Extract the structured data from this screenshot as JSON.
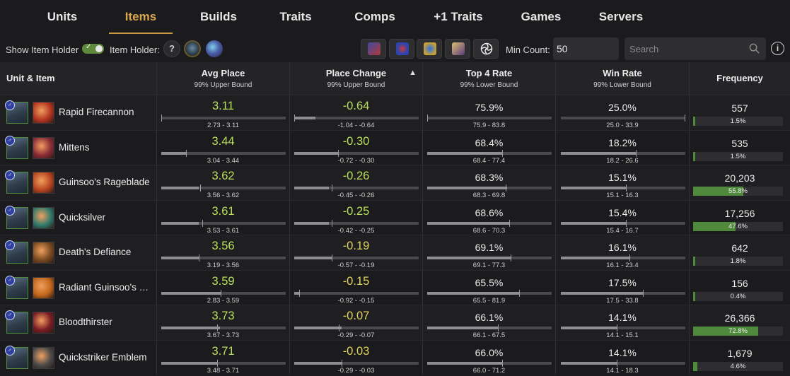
{
  "nav": {
    "tabs": [
      {
        "label": "Units"
      },
      {
        "label": "Items",
        "active": true
      },
      {
        "label": "Builds"
      },
      {
        "label": "Traits"
      },
      {
        "label": "Comps"
      },
      {
        "label": "+1 Traits"
      },
      {
        "label": "Games"
      },
      {
        "label": "Servers"
      }
    ]
  },
  "controls": {
    "show_holder_label": "Show Item Holder",
    "show_holder_on": true,
    "item_holder_label": "Item Holder:",
    "unknown_holder": "?",
    "min_count_label": "Min Count:",
    "min_count_value": "50",
    "search_placeholder": "Search",
    "info": "i"
  },
  "table": {
    "headers": {
      "unit_item": "Unit & Item",
      "avg_place": {
        "title": "Avg Place",
        "sub": "99% Upper Bound"
      },
      "place_change": {
        "title": "Place Change",
        "sub": "99% Upper Bound",
        "sort": "▲"
      },
      "top4": {
        "title": "Top 4 Rate",
        "sub": "99% Lower Bound"
      },
      "win": {
        "title": "Win Rate",
        "sub": "99% Lower Bound"
      },
      "frequency": "Frequency"
    },
    "rows": [
      {
        "item": "Rapid Firecannon",
        "item_icon": "rapid-firecannon-icon",
        "item_color": "#b3331f",
        "avg": "3.11",
        "avg_range": "2.73 - 3.11",
        "avg_fill": 0.0,
        "avg_tick": 0.0,
        "chg": "-0.64",
        "chg_color": "green",
        "chg_range": "-1.04 - -0.64",
        "chg_fill": 0.17,
        "chg_tick": 0.0,
        "top4": "75.9%",
        "top4_range": "75.9 - 83.8",
        "top4_fill": 0.0,
        "top4_tick": 0.0,
        "win": "25.0%",
        "win_range": "25.0 - 33.9",
        "win_fill": 0.0,
        "win_tick": 1.0,
        "freq": "557",
        "freq_pct": "1.5%",
        "freq_fill": 0.015
      },
      {
        "item": "Mittens",
        "item_icon": "mittens-icon",
        "item_color": "#8a2b36",
        "avg": "3.44",
        "avg_range": "3.04 - 3.44",
        "avg_fill": 0.2,
        "avg_tick": 0.2,
        "chg": "-0.30",
        "chg_color": "green",
        "chg_range": "-0.72 - -0.30",
        "chg_fill": 0.35,
        "chg_tick": 0.35,
        "top4": "68.4%",
        "top4_range": "68.4 - 77.4",
        "top4_fill": 0.6,
        "top4_tick": 0.6,
        "win": "18.2%",
        "win_range": "18.2 - 26.6",
        "win_fill": 0.6,
        "win_tick": 0.6,
        "freq": "535",
        "freq_pct": "1.5%",
        "freq_fill": 0.015
      },
      {
        "item": "Guinsoo's Rageblade",
        "item_icon": "guinsoos-rageblade-icon",
        "item_color": "#b84420",
        "avg": "3.62",
        "avg_range": "3.56 - 3.62",
        "avg_fill": 0.3,
        "avg_tick": 0.31,
        "chg": "-0.26",
        "chg_color": "green",
        "chg_range": "-0.45 - -0.26",
        "chg_fill": 0.28,
        "chg_tick": 0.3,
        "top4": "68.3%",
        "top4_range": "68.3 - 69.8",
        "top4_fill": 0.64,
        "top4_tick": 0.63,
        "win": "15.1%",
        "win_range": "15.1 - 16.3",
        "win_fill": 0.52,
        "win_tick": 0.52,
        "freq": "20,203",
        "freq_pct": "55.8%",
        "freq_fill": 0.558
      },
      {
        "item": "Quicksilver",
        "item_icon": "quicksilver-icon",
        "item_color": "#2f7a6a",
        "avg": "3.61",
        "avg_range": "3.53 - 3.61",
        "avg_fill": 0.3,
        "avg_tick": 0.33,
        "chg": "-0.25",
        "chg_color": "green",
        "chg_range": "-0.42 - -0.25",
        "chg_fill": 0.28,
        "chg_tick": 0.3,
        "top4": "68.6%",
        "top4_range": "68.6 - 70.3",
        "top4_fill": 0.66,
        "top4_tick": 0.66,
        "win": "15.4%",
        "win_range": "15.4 - 16.7",
        "win_fill": 0.52,
        "win_tick": 0.52,
        "freq": "17,256",
        "freq_pct": "47.6%",
        "freq_fill": 0.476
      },
      {
        "item": "Death's Defiance",
        "item_icon": "deaths-defiance-icon",
        "item_color": "#7a4a20",
        "avg": "3.56",
        "avg_range": "3.19 - 3.56",
        "avg_fill": 0.3,
        "avg_tick": 0.3,
        "chg": "-0.19",
        "chg_color": "yellow",
        "chg_range": "-0.57 - -0.19",
        "chg_fill": 0.3,
        "chg_tick": 0.3,
        "top4": "69.1%",
        "top4_range": "69.1 - 77.3",
        "top4_fill": 0.67,
        "top4_tick": 0.67,
        "win": "16.1%",
        "win_range": "16.1 - 23.4",
        "win_fill": 0.55,
        "win_tick": 0.55,
        "freq": "642",
        "freq_pct": "1.8%",
        "freq_fill": 0.018
      },
      {
        "item": "Radiant Guinsoo's Rageblade",
        "item_icon": "radiant-guinsoos-icon",
        "item_color": "#c0651a",
        "avg": "3.59",
        "avg_range": "2.83 - 3.59",
        "avg_fill": 0.48,
        "avg_tick": 0.48,
        "chg": "-0.15",
        "chg_color": "yellow",
        "chg_range": "-0.92 - -0.15",
        "chg_fill": 0.04,
        "chg_tick": 0.04,
        "top4": "65.5%",
        "top4_range": "65.5 - 81.9",
        "top4_fill": 0.74,
        "top4_tick": 0.74,
        "win": "17.5%",
        "win_range": "17.5 - 33.8",
        "win_fill": 0.66,
        "win_tick": 0.66,
        "freq": "156",
        "freq_pct": "0.4%",
        "freq_fill": 0.004
      },
      {
        "item": "Bloodthirster",
        "item_icon": "bloodthirster-icon",
        "item_color": "#7a1b24",
        "avg": "3.73",
        "avg_range": "3.67 - 3.73",
        "avg_fill": 0.47,
        "avg_tick": 0.45,
        "chg": "-0.07",
        "chg_color": "yellow",
        "chg_range": "-0.29 - -0.07",
        "chg_fill": 0.38,
        "chg_tick": 0.36,
        "top4": "66.1%",
        "top4_range": "66.1 - 67.5",
        "top4_fill": 0.57,
        "top4_tick": 0.57,
        "win": "14.1%",
        "win_range": "14.1 - 15.1",
        "win_fill": 0.45,
        "win_tick": 0.45,
        "freq": "26,366",
        "freq_pct": "72.8%",
        "freq_fill": 0.728
      },
      {
        "item": "Quickstriker Emblem",
        "item_icon": "quickstriker-emblem-icon",
        "item_color": "#4a4a4a",
        "avg": "3.71",
        "avg_range": "3.48 - 3.71",
        "avg_fill": 0.45,
        "avg_tick": 0.45,
        "chg": "-0.03",
        "chg_color": "yellow",
        "chg_range": "-0.29 - -0.03",
        "chg_fill": 0.38,
        "chg_tick": 0.38,
        "top4": "66.0%",
        "top4_range": "66.0 - 71.2",
        "top4_fill": 0.6,
        "top4_tick": 0.6,
        "win": "14.1%",
        "win_range": "14.1 - 18.3",
        "win_fill": 0.45,
        "win_tick": 0.45,
        "freq": "1,679",
        "freq_pct": "4.6%",
        "freq_fill": 0.046
      }
    ]
  }
}
